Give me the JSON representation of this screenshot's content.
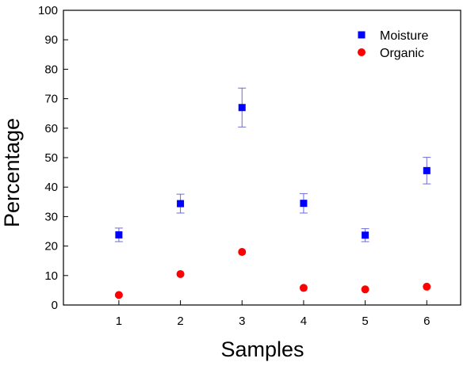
{
  "chart_data": {
    "type": "scatter",
    "title": "",
    "xlabel": "Samples",
    "ylabel": "Percentage",
    "xlim": [
      0.1,
      6.55
    ],
    "ylim": [
      0,
      100
    ],
    "x_ticks": [
      1,
      2,
      3,
      4,
      5,
      6
    ],
    "y_ticks": [
      0,
      10,
      20,
      30,
      40,
      50,
      60,
      70,
      80,
      90,
      100
    ],
    "grid": false,
    "legend_position": "top-right",
    "series": [
      {
        "name": "Moisture",
        "marker": "square",
        "color": "#0000ff",
        "x": [
          1,
          2,
          3,
          4,
          5,
          6
        ],
        "y": [
          23.8,
          34.4,
          67.0,
          34.5,
          23.7,
          45.6
        ],
        "error": [
          2.3,
          3.2,
          6.6,
          3.3,
          2.2,
          4.5
        ]
      },
      {
        "name": "Organic",
        "marker": "circle",
        "color": "#ff0000",
        "x": [
          1,
          2,
          3,
          4,
          5,
          6
        ],
        "y": [
          3.4,
          10.5,
          18.0,
          5.8,
          5.3,
          6.2
        ]
      }
    ]
  }
}
